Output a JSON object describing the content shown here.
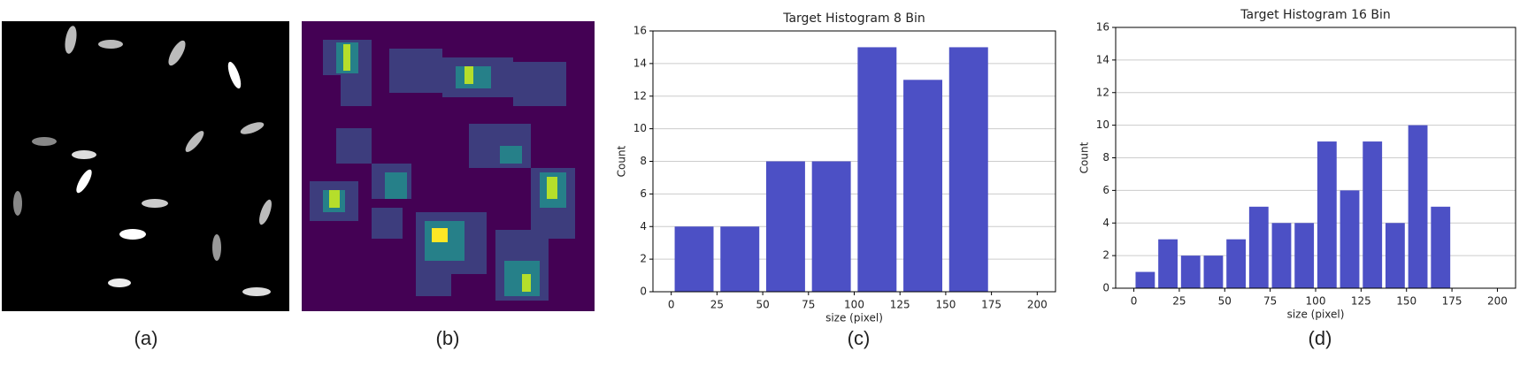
{
  "figures": [
    {
      "caption": "(a)"
    },
    {
      "caption": "(b)"
    }
  ],
  "chart_data": [
    {
      "type": "histogram",
      "title": "Target Histogram 8 Bin",
      "caption": "(c)",
      "x_label": "size (pixel)",
      "y_label": "Count",
      "color": "#4c50c5",
      "bins": [
        0,
        25,
        50,
        75,
        100,
        125,
        150,
        175,
        200
      ],
      "values": [
        4,
        4,
        8,
        8,
        15,
        13,
        15,
        0
      ],
      "xlim": [
        -10,
        210
      ],
      "xticks": [
        0,
        25,
        50,
        75,
        100,
        125,
        150,
        175,
        200
      ],
      "ylim": [
        0,
        16
      ],
      "yticks": [
        0,
        2,
        4,
        6,
        8,
        10,
        12,
        14,
        16
      ],
      "grid": true
    },
    {
      "type": "histogram",
      "title": "Target Histogram 16 Bin",
      "caption": "(d)",
      "x_label": "size (pixel)",
      "y_label": "Count",
      "color": "#4c50c5",
      "bins": [
        0,
        12.5,
        25,
        37.5,
        50,
        62.5,
        75,
        87.5,
        100,
        112.5,
        125,
        137.5,
        150,
        162.5,
        175,
        187.5,
        200
      ],
      "values": [
        1,
        3,
        2,
        2,
        3,
        5,
        4,
        4,
        9,
        6,
        9,
        4,
        10,
        5,
        0,
        0
      ],
      "xlim": [
        -10,
        210
      ],
      "xticks": [
        0,
        25,
        50,
        75,
        100,
        125,
        150,
        175,
        200
      ],
      "ylim": [
        0,
        16
      ],
      "yticks": [
        0,
        2,
        4,
        6,
        8,
        10,
        12,
        14,
        16
      ],
      "grid": true
    }
  ]
}
